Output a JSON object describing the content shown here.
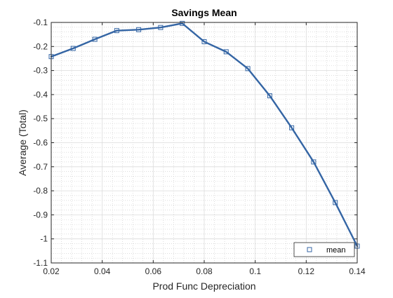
{
  "chart_data": {
    "type": "line",
    "title": "Savings Mean",
    "xlabel": "Prod Func Depreciation",
    "ylabel": "Average (Total)",
    "xlim": [
      0.02,
      0.14
    ],
    "ylim": [
      -1.1,
      -0.1
    ],
    "xticks": [
      0.02,
      0.04,
      0.06,
      0.08,
      0.1,
      0.12,
      0.14
    ],
    "xtick_labels": [
      "0.02",
      "0.04",
      "0.06",
      "0.08",
      "0.1",
      "0.12",
      "0.14"
    ],
    "yticks": [
      -0.1,
      -0.2,
      -0.3,
      -0.4,
      -0.5,
      -0.6,
      -0.7,
      -0.8,
      -0.9,
      -1,
      -1.1
    ],
    "ytick_labels": [
      "-0.1",
      "-0.2",
      "-0.3",
      "-0.4",
      "-0.5",
      "-0.6",
      "-0.7",
      "-0.8",
      "-0.9",
      "-1",
      "-1.1"
    ],
    "grid": true,
    "minor_grid": true,
    "legend": {
      "placement": "bottom-right",
      "entries": [
        "mean"
      ]
    },
    "series": [
      {
        "name": "mean",
        "color": "#3465a4",
        "marker": "square",
        "x": [
          0.02,
          0.0286,
          0.0371,
          0.0457,
          0.0543,
          0.0629,
          0.0714,
          0.08,
          0.0886,
          0.0971,
          0.1057,
          0.1143,
          0.1229,
          0.1314,
          0.14
        ],
        "y": [
          -0.242,
          -0.208,
          -0.17,
          -0.134,
          -0.13,
          -0.121,
          -0.104,
          -0.18,
          -0.222,
          -0.292,
          -0.405,
          -0.538,
          -0.68,
          -0.849,
          -1.03
        ]
      }
    ]
  }
}
